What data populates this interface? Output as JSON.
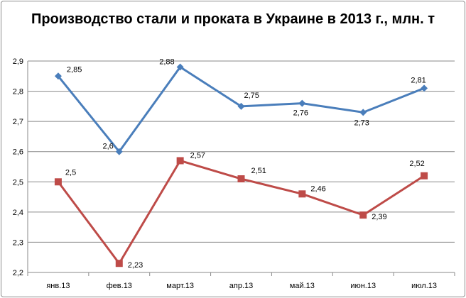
{
  "chart_data": {
    "type": "line",
    "title": "Производство стали и проката в Украине в 2013 г., млн. т",
    "categories": [
      "янв.13",
      "фев.13",
      "март.13",
      "апр.13",
      "май.13",
      "июн.13",
      "июл.13"
    ],
    "ylim": [
      2.2,
      2.9
    ],
    "yticks": [
      "2,2",
      "2,3",
      "2,4",
      "2,5",
      "2,6",
      "2,7",
      "2,8",
      "2,9"
    ],
    "grid": true,
    "legend": "none",
    "series": [
      {
        "values": [
          2.85,
          2.6,
          2.88,
          2.75,
          2.76,
          2.73,
          2.81
        ],
        "labels": [
          "2,85",
          "2,6",
          "2,88",
          "2,75",
          "2,76",
          "2,73",
          "2,81"
        ],
        "color": "#4a7ebb",
        "marker": "diamond"
      },
      {
        "values": [
          2.5,
          2.23,
          2.57,
          2.51,
          2.46,
          2.39,
          2.52
        ],
        "labels": [
          "2,5",
          "2,23",
          "2,57",
          "2,51",
          "2,46",
          "2,39",
          "2,52"
        ],
        "color": "#be4b48",
        "marker": "square"
      }
    ]
  }
}
